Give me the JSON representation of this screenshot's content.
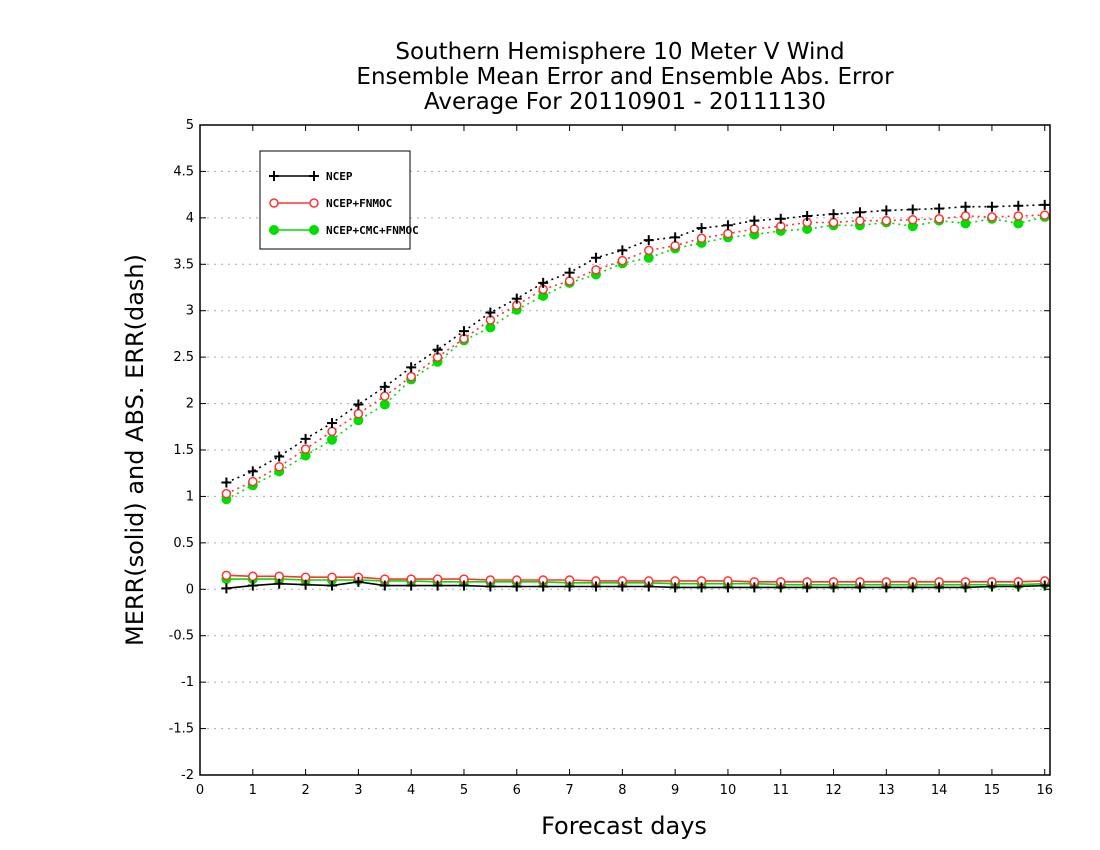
{
  "chart_data": {
    "type": "line",
    "title": [
      "Southern Hemisphere 10 Meter V Wind",
      "Ensemble Mean Error and Ensemble Abs. Error",
      "Average For 20110901 - 20111130"
    ],
    "xlabel": "Forecast days",
    "ylabel": "MERR(solid) and ABS. ERR(dash)",
    "xlim": [
      0,
      16.1
    ],
    "ylim": [
      -2,
      5
    ],
    "xticks": [
      0,
      1,
      2,
      3,
      4,
      5,
      6,
      7,
      8,
      9,
      10,
      11,
      12,
      13,
      14,
      15,
      16
    ],
    "yticks": [
      -2,
      -1.5,
      -1,
      -0.5,
      0,
      0.5,
      1,
      1.5,
      2,
      2.5,
      3,
      3.5,
      4,
      4.5,
      5
    ],
    "ytick_labels": [
      "-2",
      "-1.5",
      "-1",
      "-0.5",
      "0",
      "0.5",
      "1",
      "1.5",
      "2",
      "2.5",
      "3",
      "3.5",
      "4",
      "4.5",
      "5"
    ],
    "grid": true,
    "legend_position": "top-left",
    "x": [
      0.5,
      1,
      1.5,
      2,
      2.5,
      3,
      3.5,
      4,
      4.5,
      5,
      5.5,
      6,
      6.5,
      7,
      7.5,
      8,
      8.5,
      9,
      9.5,
      10,
      10.5,
      11,
      11.5,
      12,
      12.5,
      13,
      13.5,
      14,
      14.5,
      15,
      15.5,
      16
    ],
    "series": [
      {
        "name": "NCEP",
        "color": "#000000",
        "marker": "plus",
        "mean_error": [
          0.01,
          0.04,
          0.06,
          0.05,
          0.04,
          0.08,
          0.04,
          0.04,
          0.04,
          0.04,
          0.03,
          0.03,
          0.03,
          0.03,
          0.03,
          0.03,
          0.03,
          0.02,
          0.02,
          0.02,
          0.02,
          0.02,
          0.02,
          0.02,
          0.02,
          0.02,
          0.02,
          0.02,
          0.02,
          0.03,
          0.03,
          0.04
        ],
        "abs_error": [
          1.15,
          1.27,
          1.43,
          1.62,
          1.79,
          1.99,
          2.18,
          2.39,
          2.58,
          2.78,
          2.98,
          3.13,
          3.3,
          3.41,
          3.57,
          3.65,
          3.76,
          3.79,
          3.89,
          3.92,
          3.97,
          3.99,
          4.02,
          4.04,
          4.06,
          4.08,
          4.09,
          4.1,
          4.12,
          4.12,
          4.13,
          4.14
        ]
      },
      {
        "name": "NCEP+FNMOC",
        "color": "#ff3333",
        "marker": "open-circle",
        "mean_error": [
          0.15,
          0.14,
          0.14,
          0.13,
          0.13,
          0.13,
          0.11,
          0.11,
          0.11,
          0.11,
          0.1,
          0.1,
          0.1,
          0.1,
          0.09,
          0.09,
          0.09,
          0.09,
          0.09,
          0.09,
          0.08,
          0.08,
          0.08,
          0.08,
          0.08,
          0.08,
          0.08,
          0.08,
          0.08,
          0.08,
          0.08,
          0.09
        ],
        "abs_error": [
          1.03,
          1.16,
          1.32,
          1.51,
          1.7,
          1.89,
          2.08,
          2.29,
          2.5,
          2.7,
          2.9,
          3.06,
          3.23,
          3.32,
          3.44,
          3.54,
          3.65,
          3.7,
          3.78,
          3.83,
          3.88,
          3.91,
          3.95,
          3.95,
          3.97,
          3.97,
          3.98,
          3.99,
          4.02,
          4.01,
          4.02,
          4.03
        ]
      },
      {
        "name": "NCEP+CMC+FNMOC",
        "color": "#00dd00",
        "marker": "filled-circle",
        "mean_error": [
          0.11,
          0.11,
          0.11,
          0.1,
          0.1,
          0.1,
          0.09,
          0.09,
          0.08,
          0.08,
          0.08,
          0.08,
          0.08,
          0.07,
          0.07,
          0.07,
          0.07,
          0.06,
          0.06,
          0.06,
          0.06,
          0.05,
          0.05,
          0.05,
          0.05,
          0.05,
          0.05,
          0.05,
          0.05,
          0.05,
          0.05,
          0.06
        ],
        "abs_error": [
          0.97,
          1.12,
          1.27,
          1.44,
          1.61,
          1.82,
          1.99,
          2.26,
          2.45,
          2.68,
          2.82,
          3.01,
          3.16,
          3.3,
          3.39,
          3.51,
          3.57,
          3.67,
          3.73,
          3.79,
          3.82,
          3.86,
          3.88,
          3.92,
          3.92,
          3.95,
          3.91,
          3.97,
          3.94,
          3.99,
          3.94,
          4.01
        ]
      }
    ]
  }
}
